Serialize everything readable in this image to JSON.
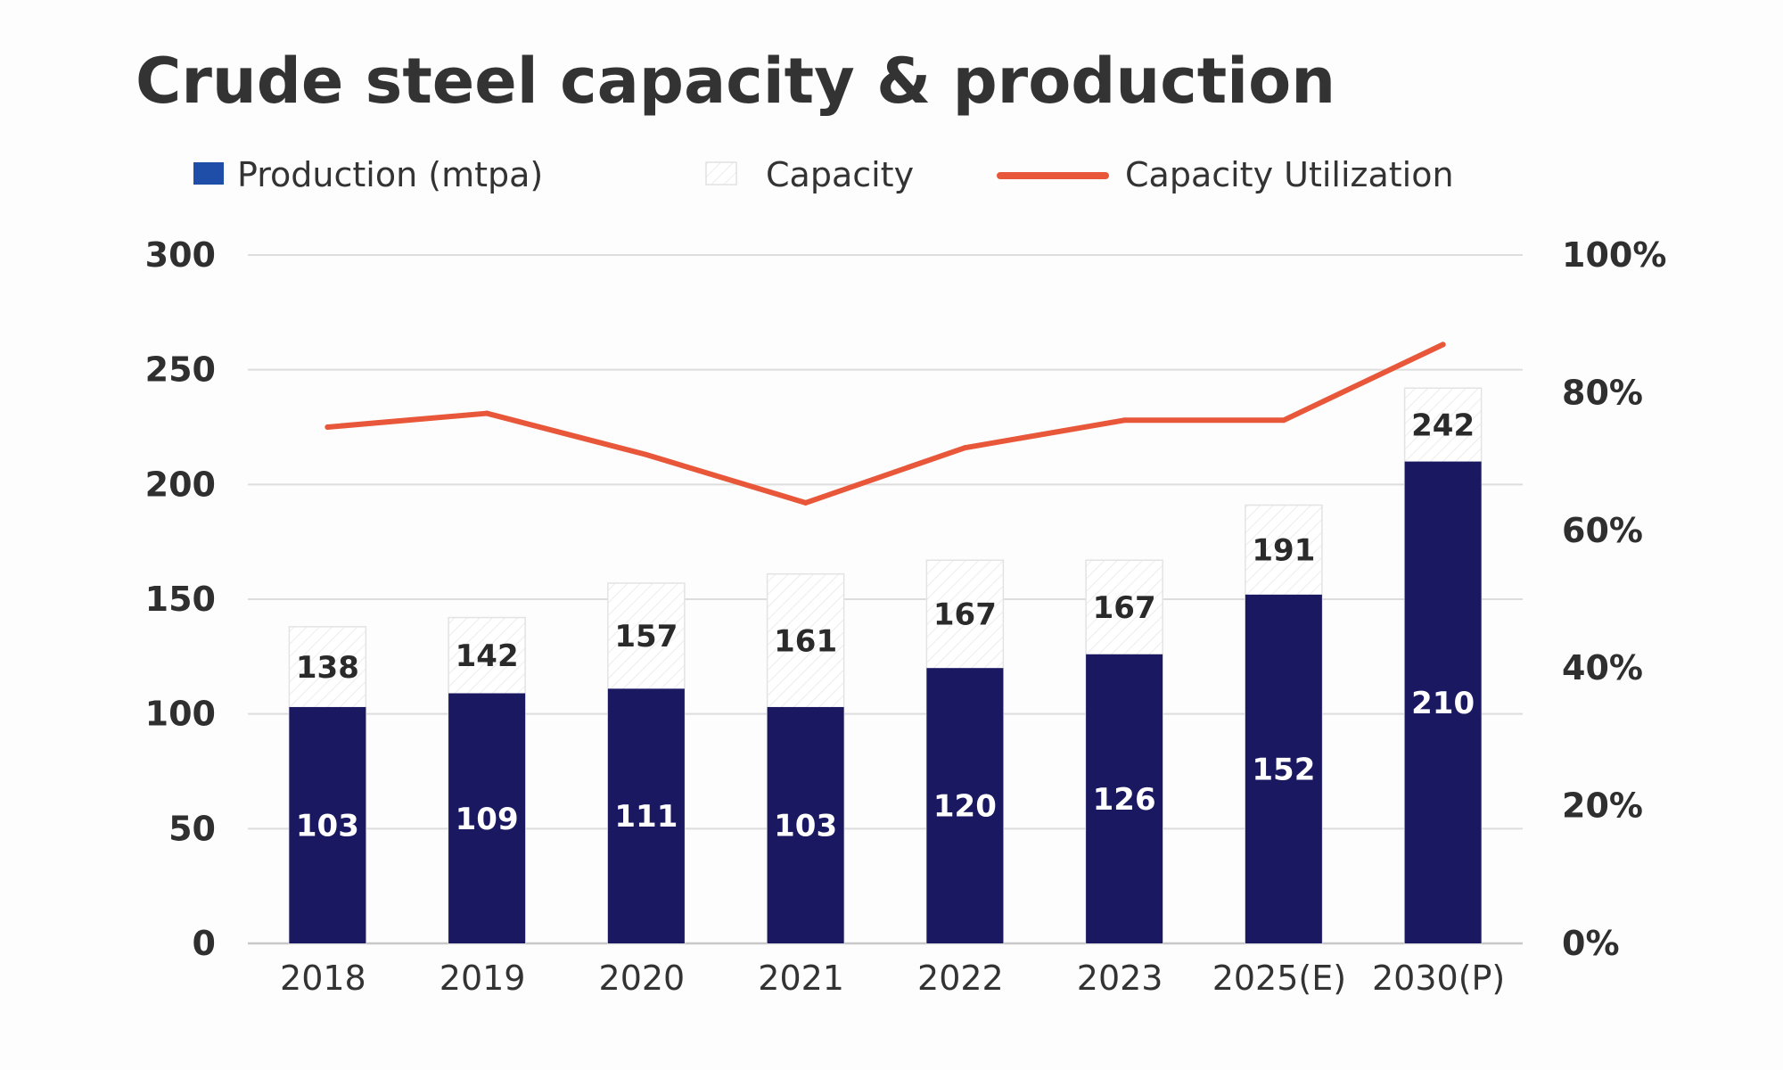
{
  "chart_data": {
    "type": "bar",
    "title": "Crude steel capacity & production",
    "categories": [
      "2018",
      "2019",
      "2020",
      "2021",
      "2022",
      "2023",
      "2025(E)",
      "2030(P)"
    ],
    "series": [
      {
        "name": "Production (mtpa)",
        "values": [
          103,
          109,
          111,
          103,
          120,
          126,
          152,
          210
        ],
        "color": "#1a1860"
      },
      {
        "name": "Capacity",
        "values": [
          138,
          142,
          157,
          161,
          167,
          167,
          191,
          242
        ],
        "color": "#ffffff"
      },
      {
        "name": "Capacity Utilization",
        "type": "line",
        "axis": "right",
        "values": [
          75,
          77,
          71,
          64,
          72,
          76,
          76,
          87
        ],
        "unit": "%",
        "color": "#e8573a"
      }
    ],
    "y_left": {
      "ylim": [
        0,
        300
      ],
      "ticks": [
        0,
        50,
        100,
        150,
        200,
        250,
        300
      ],
      "tick_labels": [
        "0",
        "50",
        "100",
        "150",
        "200",
        "250",
        "300"
      ]
    },
    "y_right": {
      "ylim": [
        0,
        100
      ],
      "ticks": [
        0,
        20,
        40,
        60,
        80,
        100
      ],
      "tick_labels": [
        "0%",
        "20%",
        "40%",
        "60%",
        "80%",
        "100%"
      ]
    },
    "xlabel": "",
    "ylabel": "",
    "grid": true,
    "legend": {
      "placement": "top",
      "entries": [
        "Production (mtpa)",
        "Capacity",
        "Capacity Utilization"
      ]
    }
  }
}
